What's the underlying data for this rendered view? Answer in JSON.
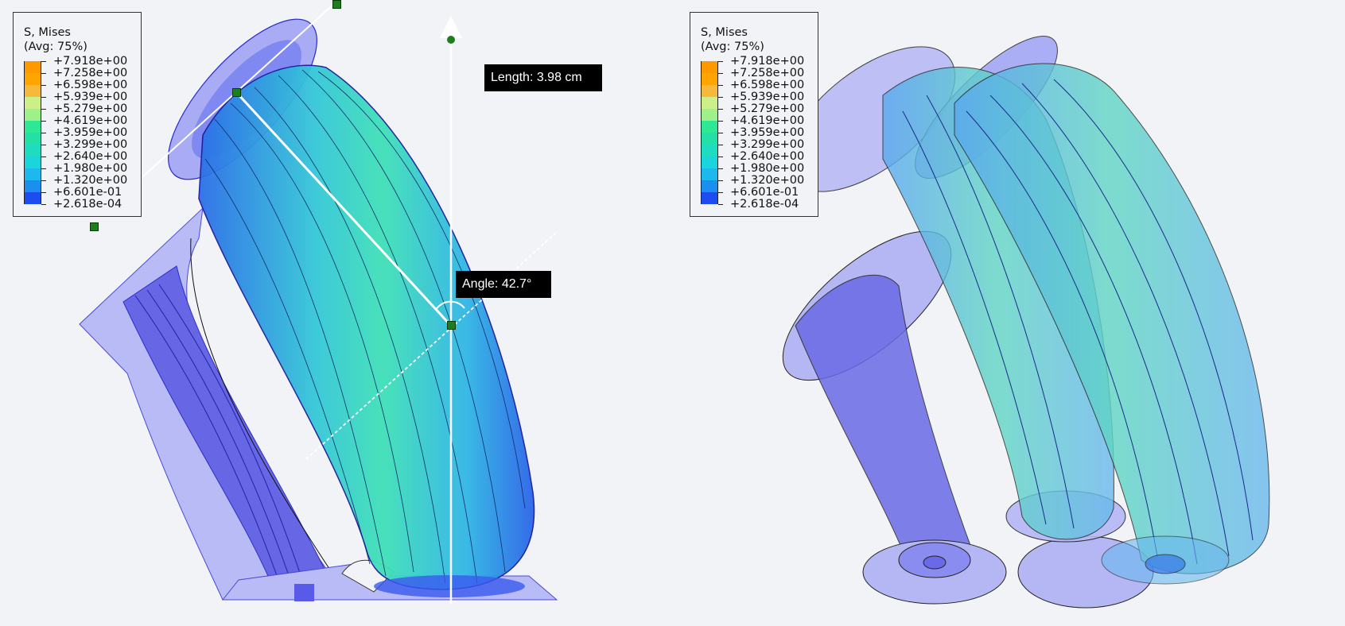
{
  "legend": {
    "title_line1": "S, Mises",
    "title_line2": "(Avg: 75%)",
    "entries": [
      {
        "value": "+7.918e+00",
        "color": "#ff9900"
      },
      {
        "value": "+7.258e+00",
        "color": "#ffa500"
      },
      {
        "value": "+6.598e+00",
        "color": "#f6b93c"
      },
      {
        "value": "+5.939e+00",
        "color": "#cdef8a"
      },
      {
        "value": "+5.279e+00",
        "color": "#9ef08a"
      },
      {
        "value": "+4.619e+00",
        "color": "#2fe896"
      },
      {
        "value": "+3.959e+00",
        "color": "#24e0a6"
      },
      {
        "value": "+3.299e+00",
        "color": "#1fdcc0"
      },
      {
        "value": "+2.640e+00",
        "color": "#1ad6dc"
      },
      {
        "value": "+1.980e+00",
        "color": "#1cb8ee"
      },
      {
        "value": "+1.320e+00",
        "color": "#1a8ff0"
      },
      {
        "value": "+6.601e-01",
        "color": "#1d4cf0"
      },
      {
        "value": "+2.618e-04",
        "color": "#1f22ee"
      }
    ]
  },
  "measurements": {
    "length_label": "Length: 3.98 cm",
    "angle_label": "Angle: 42.7°"
  },
  "colors": {
    "background": "#f1f3f6",
    "shell_light": "#a9acf4",
    "shell_dark": "#5a5ae8",
    "stress_mid": "#3fc7d6",
    "handle": "#1b7f1b"
  }
}
